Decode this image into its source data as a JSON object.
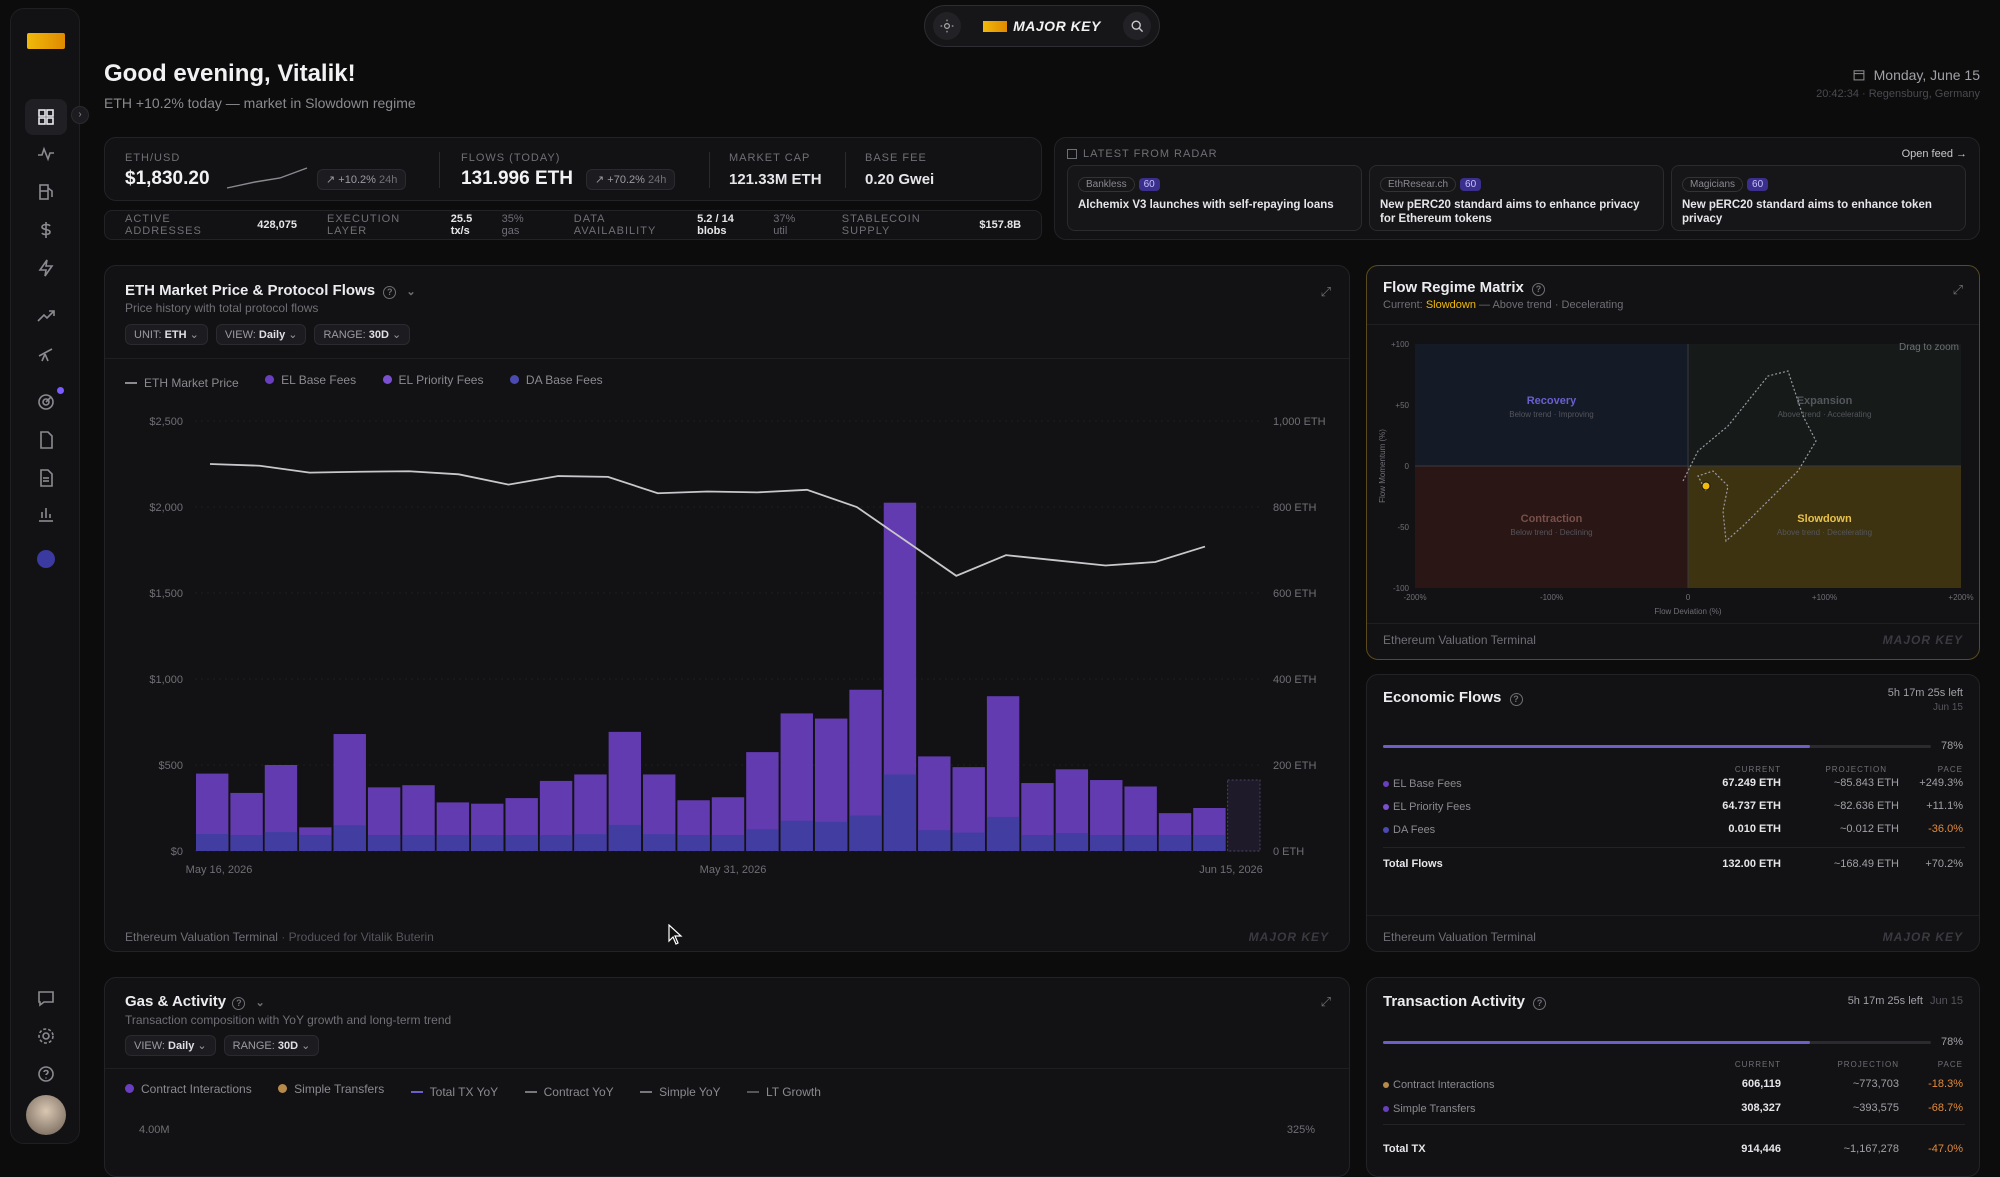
{
  "topbar": {
    "brand": "MAJOR KEY"
  },
  "header": {
    "greeting": "Good evening, Vitalik!",
    "subtitle": "ETH +10.2% today — market in Slowdown regime",
    "date": "Monday, June 15",
    "time_location": "20:42:34 · Regensburg, Germany"
  },
  "stats": {
    "eth_label": "ETH/USD",
    "eth_value": "$1,830.20",
    "eth_change": "+10.2%",
    "eth_period": "24h",
    "flows_label": "FLOWS (TODAY)",
    "flows_value": "131.996 ETH",
    "flows_change": "+70.2%",
    "flows_period": "24h",
    "mcap_label": "MARKET CAP",
    "mcap_value": "121.33M ETH",
    "fee_label": "BASE FEE",
    "fee_value": "0.20 Gwei"
  },
  "metrics": {
    "active_label": "ACTIVE ADDRESSES",
    "active_value": "428,075",
    "exec_label": "EXECUTION LAYER",
    "exec_value": "25.5 tx/s",
    "exec_extra": "35% gas",
    "da_label": "DATA AVAILABILITY",
    "da_value": "5.2 / 14 blobs",
    "da_extra": "37% util",
    "stable_label": "STABLECOIN SUPPLY",
    "stable_value": "$157.8B"
  },
  "radar": {
    "title": "LATEST FROM RADAR",
    "open_feed": "Open feed →",
    "items": [
      {
        "source": "Bankless",
        "score": "60",
        "title": "Alchemix V3 launches with self-repaying loans"
      },
      {
        "source": "EthResear.ch",
        "score": "60",
        "title": "New pERC20 standard aims to enhance privacy for Ethereum tokens"
      },
      {
        "source": "Magicians",
        "score": "60",
        "title": "New pERC20 standard aims to enhance token privacy"
      }
    ]
  },
  "main_chart": {
    "title": "ETH Market Price & Protocol Flows",
    "subtitle": "Price history with total protocol flows",
    "unit_label": "UNIT:",
    "unit_value": "ETH",
    "view_label": "VIEW:",
    "view_value": "Daily",
    "range_label": "RANGE:",
    "range_value": "30D",
    "legend": [
      "ETH Market Price",
      "EL Base Fees",
      "EL Priority Fees",
      "DA Base Fees"
    ],
    "footer": "Ethereum Valuation Terminal",
    "footer_extra": "Produced for Vitalik Buterin",
    "brand": "MAJOR KEY"
  },
  "chart_data": {
    "type": "bar",
    "x_ticks": [
      "May 16, 2026",
      "May 31, 2026",
      "Jun 15, 2026"
    ],
    "y_left_ticks": [
      "$2,500",
      "$2,000",
      "$1,500",
      "$1,000",
      "$500",
      "$0"
    ],
    "y_right_ticks": [
      "1,000 ETH",
      "800 ETH",
      "600 ETH",
      "400 ETH",
      "200 ETH",
      "0 ETH"
    ],
    "ylim_right": [
      0,
      1000
    ],
    "ylim_left": [
      0,
      2500
    ],
    "flows_eth": [
      180,
      135,
      200,
      55,
      272,
      148,
      153,
      113,
      110,
      123,
      163,
      178,
      277,
      178,
      118,
      125,
      230,
      320,
      308,
      375,
      810,
      220,
      195,
      360,
      158,
      190,
      165,
      150,
      88,
      100,
      165
    ],
    "price_usd": [
      2250,
      2240,
      2200,
      2205,
      2208,
      2190,
      2130,
      2180,
      2175,
      2080,
      2090,
      2085,
      2100,
      2000,
      1800,
      1600,
      1720,
      1690,
      1660,
      1680,
      1770
    ],
    "colors": {
      "bars": "#6a3fbf",
      "bars_low": "#3e3ea0",
      "price": "#c8c8cc",
      "accent": "#f0b90b"
    }
  },
  "regime": {
    "title": "Flow Regime Matrix",
    "current_label": "Current:",
    "current_value": "Slowdown",
    "current_extra": "— Above trend · Decelerating",
    "drag": "Drag to zoom",
    "quadrants": [
      {
        "name": "Recovery",
        "desc": "Below trend · Improving"
      },
      {
        "name": "Expansion",
        "desc": "Above trend · Accelerating"
      },
      {
        "name": "Contraction",
        "desc": "Below trend · Declining"
      },
      {
        "name": "Slowdown",
        "desc": "Above trend · Decelerating"
      }
    ],
    "y_ticks": [
      "+100",
      "+50",
      "0",
      "-50",
      "-100"
    ],
    "x_ticks": [
      "-200%",
      "-100%",
      "0",
      "+100%",
      "+200%"
    ],
    "y_label": "Flow Momentum (%)",
    "x_label": "Flow Deviation (%)",
    "footer": "Ethereum Valuation Terminal",
    "brand": "MAJOR KEY"
  },
  "econ": {
    "title": "Economic Flows",
    "time_left": "5h 17m 25s left",
    "date": "Jun 15",
    "progress": 78,
    "progress_label": "78%",
    "col_current": "CURRENT",
    "col_projection": "PROJECTION",
    "col_pace": "PACE",
    "rows": [
      {
        "name": "EL Base Fees",
        "current": "67.249 ETH",
        "projection": "~85.843 ETH",
        "pace": "+249.3%"
      },
      {
        "name": "EL Priority Fees",
        "current": "64.737 ETH",
        "projection": "~82.636 ETH",
        "pace": "+11.1%"
      },
      {
        "name": "DA Fees",
        "current": "0.010 ETH",
        "projection": "~0.012 ETH",
        "pace": "-36.0%"
      }
    ],
    "total": {
      "name": "Total Flows",
      "current": "132.00 ETH",
      "projection": "~168.49 ETH",
      "pace": "+70.2%"
    },
    "footer": "Ethereum Valuation Terminal",
    "brand": "MAJOR KEY"
  },
  "gas": {
    "title": "Gas & Activity",
    "subtitle": "Transaction composition with YoY growth and long-term trend",
    "view_label": "VIEW:",
    "view_value": "Daily",
    "range_label": "RANGE:",
    "range_value": "30D",
    "legend": [
      "Contract Interactions",
      "Simple Transfers",
      "Total TX YoY",
      "Contract YoY",
      "Simple YoY",
      "LT Growth"
    ],
    "y_left_top": "4.00M",
    "y_right_top": "325%"
  },
  "tx": {
    "title": "Transaction Activity",
    "time_left": "5h 17m 25s left",
    "date": "Jun 15",
    "progress": 78,
    "progress_label": "78%",
    "col_current": "CURRENT",
    "col_projection": "PROJECTION",
    "col_pace": "PACE",
    "rows": [
      {
        "name": "Contract Interactions",
        "current": "606,119",
        "projection": "~773,703",
        "pace": "-18.3%"
      },
      {
        "name": "Simple Transfers",
        "current": "308,327",
        "projection": "~393,575",
        "pace": "-68.7%"
      }
    ],
    "total": {
      "name": "Total TX",
      "current": "914,446",
      "projection": "~1,167,278",
      "pace": "-47.0%"
    }
  }
}
